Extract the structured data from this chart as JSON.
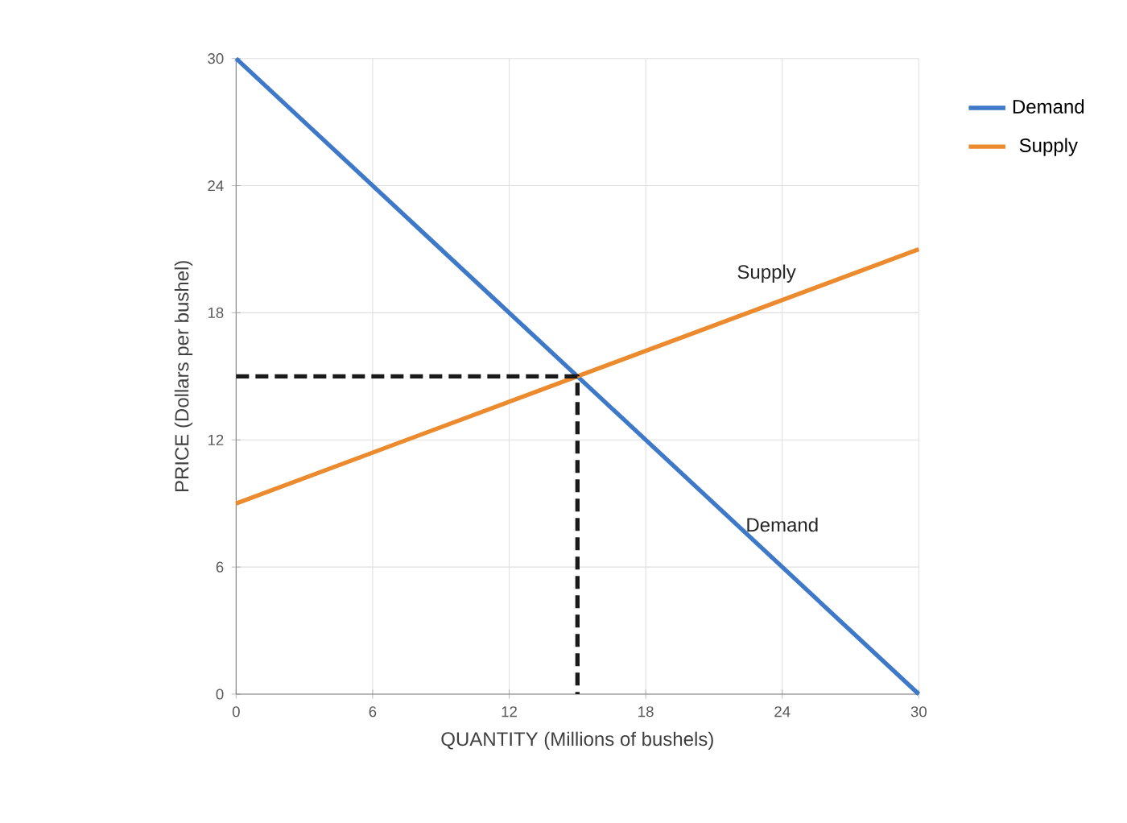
{
  "chart_data": {
    "type": "line",
    "xlabel": "QUANTITY (Millions of bushels)",
    "ylabel": "PRICE (Dollars per bushel)",
    "xlim": [
      0,
      30
    ],
    "ylim": [
      0,
      30
    ],
    "xticks": [
      0,
      6,
      12,
      18,
      24,
      30
    ],
    "yticks": [
      0,
      6,
      12,
      18,
      24,
      30
    ],
    "grid": true,
    "legend": "right",
    "series": [
      {
        "name": "Demand",
        "color": "#3d78c9",
        "x": [
          0,
          30
        ],
        "values": [
          30,
          0
        ]
      },
      {
        "name": "Supply",
        "color": "#ec8a2e",
        "x": [
          0,
          30
        ],
        "values": [
          9,
          21
        ]
      },
      {
        "color": "#1a1a1a",
        "line_style": "dashed",
        "x": [
          0,
          15,
          15
        ],
        "values": [
          15,
          15,
          0
        ]
      }
    ],
    "annotations": [
      {
        "text": "Supply",
        "x": 25,
        "y": 19
      },
      {
        "text": "Demand",
        "x": 22,
        "y": 8
      }
    ]
  }
}
